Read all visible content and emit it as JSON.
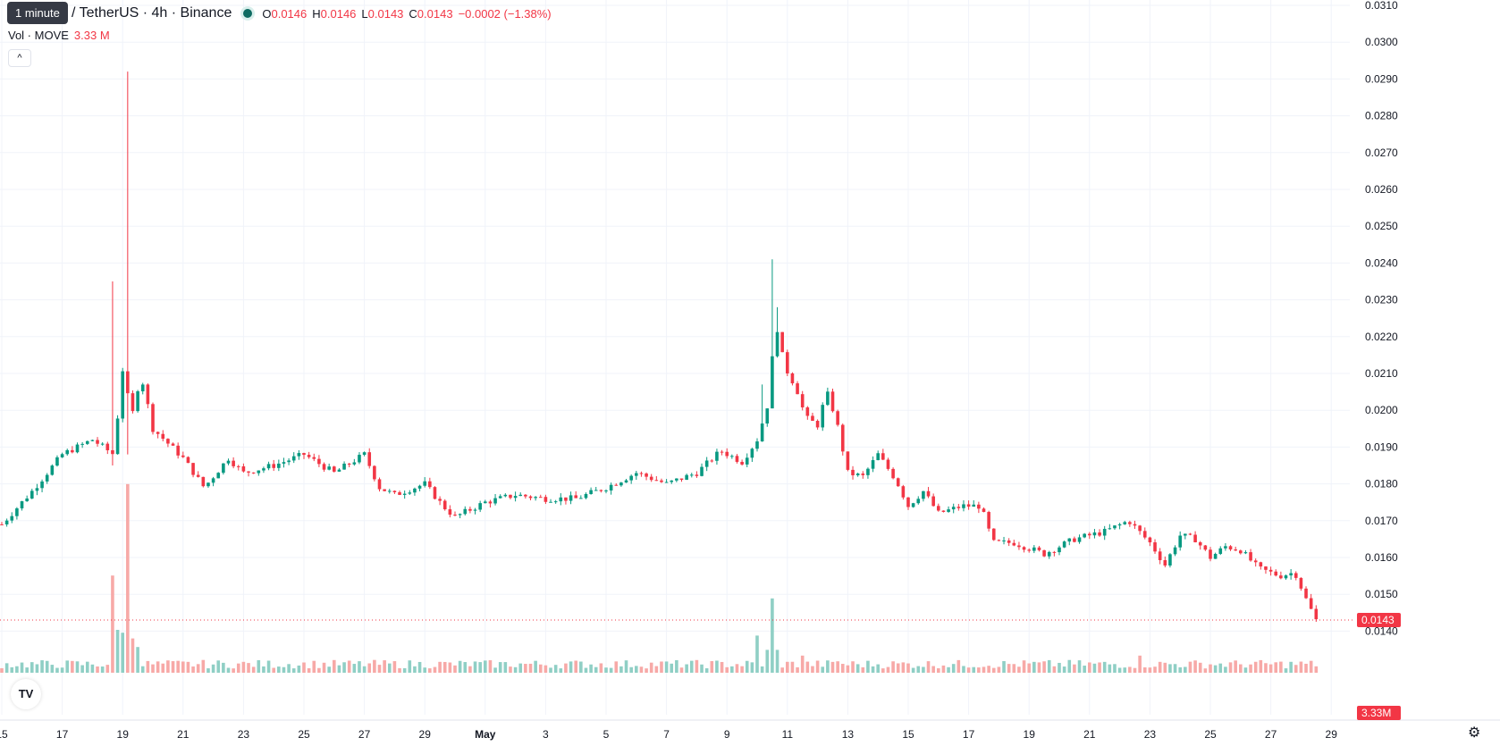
{
  "header": {
    "tooltip": "1 minute",
    "symbol": "/ TetherUS · 4h · Binance",
    "ohlc": [
      {
        "k": "O",
        "v": "0.0146"
      },
      {
        "k": "H",
        "v": "0.0146"
      },
      {
        "k": "L",
        "v": "0.0143"
      },
      {
        "k": "C",
        "v": "0.0143"
      }
    ],
    "change": "−0.0002 (−1.38%)",
    "volume_label": "Vol · MOVE",
    "volume_value": "3.33 M",
    "collapse_glyph": "^"
  },
  "logo_text": "TV",
  "settings_icon": "gear-icon",
  "colors": {
    "up": "#089981",
    "down": "#f23645",
    "up_vol": "#8fcfc5",
    "down_vol": "#f7a9a7",
    "grid": "#f0f3fa"
  },
  "chart_data": {
    "type": "candlestick",
    "title": "",
    "y_ticks": [
      "0.0310",
      "0.0300",
      "0.0290",
      "0.0280",
      "0.0270",
      "0.0260",
      "0.0250",
      "0.0240",
      "0.0230",
      "0.0220",
      "0.0210",
      "0.0200",
      "0.0190",
      "0.0180",
      "0.0170",
      "0.0160",
      "0.0150",
      "0.0140"
    ],
    "y_range": [
      0.0136,
      0.0311
    ],
    "x_ticks": [
      "15",
      "17",
      "19",
      "21",
      "23",
      "25",
      "27",
      "29",
      "May",
      "3",
      "5",
      "7",
      "9",
      "11",
      "13",
      "15",
      "17",
      "19",
      "21",
      "23",
      "25",
      "27",
      "29"
    ],
    "x_range_days": [
      0,
      46
    ],
    "last_price": "0.0143",
    "last_volume": "3.33M",
    "anchors": [
      {
        "d": 0,
        "p": 0.0169
      },
      {
        "d": 1,
        "p": 0.0178
      },
      {
        "d": 2,
        "p": 0.0188
      },
      {
        "d": 3,
        "p": 0.0192
      },
      {
        "d": 3.7,
        "p": 0.0188
      },
      {
        "d": 4.0,
        "p": 0.0211
      },
      {
        "d": 4.3,
        "p": 0.0198
      },
      {
        "d": 4.6,
        "p": 0.021
      },
      {
        "d": 5,
        "p": 0.0195
      },
      {
        "d": 6,
        "p": 0.0187
      },
      {
        "d": 6.7,
        "p": 0.0179
      },
      {
        "d": 7.5,
        "p": 0.0187
      },
      {
        "d": 8,
        "p": 0.0183
      },
      {
        "d": 9,
        "p": 0.0185
      },
      {
        "d": 10,
        "p": 0.0188
      },
      {
        "d": 11,
        "p": 0.0183
      },
      {
        "d": 12,
        "p": 0.0188
      },
      {
        "d": 12.5,
        "p": 0.0179
      },
      {
        "d": 13,
        "p": 0.0177
      },
      {
        "d": 14,
        "p": 0.018
      },
      {
        "d": 14.6,
        "p": 0.0174
      },
      {
        "d": 15,
        "p": 0.0171
      },
      {
        "d": 16,
        "p": 0.0175
      },
      {
        "d": 17,
        "p": 0.0177
      },
      {
        "d": 18,
        "p": 0.0176
      },
      {
        "d": 19,
        "p": 0.0176
      },
      {
        "d": 20,
        "p": 0.0179
      },
      {
        "d": 21,
        "p": 0.0183
      },
      {
        "d": 22,
        "p": 0.018
      },
      {
        "d": 23,
        "p": 0.0183
      },
      {
        "d": 23.8,
        "p": 0.0189
      },
      {
        "d": 24.5,
        "p": 0.0186
      },
      {
        "d": 25,
        "p": 0.0192
      },
      {
        "d": 25.4,
        "p": 0.0203
      },
      {
        "d": 25.6,
        "p": 0.0225
      },
      {
        "d": 25.9,
        "p": 0.0212
      },
      {
        "d": 26.3,
        "p": 0.0206
      },
      {
        "d": 26.6,
        "p": 0.0198
      },
      {
        "d": 27,
        "p": 0.0196
      },
      {
        "d": 27.3,
        "p": 0.0205
      },
      {
        "d": 27.6,
        "p": 0.0198
      },
      {
        "d": 28,
        "p": 0.0183
      },
      {
        "d": 28.5,
        "p": 0.0182
      },
      {
        "d": 29,
        "p": 0.0188
      },
      {
        "d": 29.6,
        "p": 0.0181
      },
      {
        "d": 30,
        "p": 0.0174
      },
      {
        "d": 30.5,
        "p": 0.0178
      },
      {
        "d": 31,
        "p": 0.0172
      },
      {
        "d": 31.8,
        "p": 0.0174
      },
      {
        "d": 32.4,
        "p": 0.0174
      },
      {
        "d": 32.8,
        "p": 0.0164
      },
      {
        "d": 33.5,
        "p": 0.0164
      },
      {
        "d": 34.5,
        "p": 0.0161
      },
      {
        "d": 35.5,
        "p": 0.0165
      },
      {
        "d": 36.5,
        "p": 0.0167
      },
      {
        "d": 37.3,
        "p": 0.017
      },
      {
        "d": 38,
        "p": 0.0164
      },
      {
        "d": 38.5,
        "p": 0.0158
      },
      {
        "d": 39,
        "p": 0.0166
      },
      {
        "d": 39.5,
        "p": 0.0165
      },
      {
        "d": 40,
        "p": 0.016
      },
      {
        "d": 40.5,
        "p": 0.0163
      },
      {
        "d": 41,
        "p": 0.0162
      },
      {
        "d": 41.6,
        "p": 0.0157
      },
      {
        "d": 42.3,
        "p": 0.0155
      },
      {
        "d": 42.8,
        "p": 0.0156
      },
      {
        "d": 43.2,
        "p": 0.0148
      },
      {
        "d": 43.5,
        "p": 0.0143
      }
    ],
    "spikes": [
      {
        "d": 3.66,
        "high": 0.0235,
        "low": 0.0185
      },
      {
        "d": 4.16,
        "high": 0.0292,
        "low": 0.0188
      },
      {
        "d": 25.13,
        "high": 0.0207
      },
      {
        "d": 25.5,
        "high": 0.0241
      },
      {
        "d": 25.7,
        "high": 0.0228
      }
    ],
    "volume_spikes": [
      {
        "d": 3.66,
        "v": 0.34
      },
      {
        "d": 3.83,
        "v": 0.15
      },
      {
        "d": 4.0,
        "v": 0.14
      },
      {
        "d": 4.16,
        "v": 0.66
      },
      {
        "d": 4.33,
        "v": 0.12
      },
      {
        "d": 4.5,
        "v": 0.09
      },
      {
        "d": 24.99,
        "v": 0.13
      },
      {
        "d": 25.33,
        "v": 0.08
      },
      {
        "d": 25.5,
        "v": 0.26
      },
      {
        "d": 25.66,
        "v": 0.08
      },
      {
        "d": 26.5,
        "v": 0.06
      },
      {
        "d": 27.66,
        "v": 0.04
      },
      {
        "d": 37.66,
        "v": 0.06
      }
    ]
  }
}
